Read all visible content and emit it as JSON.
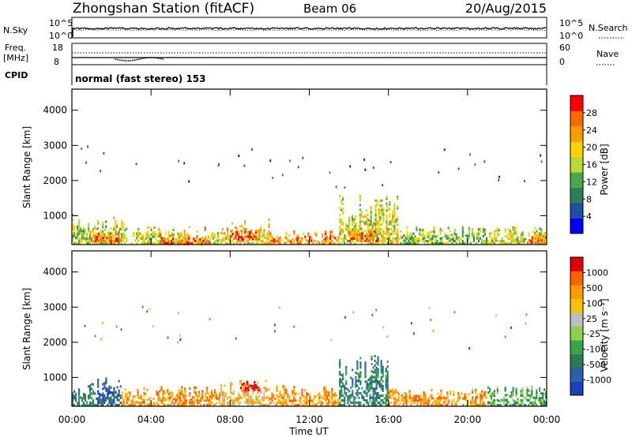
{
  "header": {
    "station": "Zhongshan Station (fitACF)",
    "beam": "Beam 06",
    "date": "20/Aug/2015"
  },
  "aux": {
    "nsky_label": "N.Sky",
    "nsky_ticks": [
      "10^5",
      "10^0"
    ],
    "nsearch_label": "N.Search",
    "freq_label": "Freq.",
    "freq_unit": "[MHz]",
    "freq_ticks": [
      "18",
      "8"
    ],
    "nave_label": "Nave",
    "nave_ticks": [
      "60",
      "0"
    ],
    "cpid_label": "CPID",
    "cpid_text": "normal (fast stereo) 153"
  },
  "time_axis": {
    "ticks": [
      "00:00",
      "04:00",
      "08:00",
      "12:00",
      "16:00",
      "20:00",
      "00:00"
    ],
    "label": "Time UT"
  },
  "colors": {
    "power_scale": [
      "#0000ff",
      "#1f4fa3",
      "#2e7d5b",
      "#49a84a",
      "#b8d832",
      "#ffd200",
      "#ff9a00",
      "#ff6a00",
      "#ff0000"
    ],
    "velocity_scale": [
      "#1a3fbf",
      "#2960a8",
      "#2e7a52",
      "#3aa64a",
      "#90d050",
      "#bdbdbd",
      "#ffc000",
      "#ff9a00",
      "#ff6000",
      "#e00000"
    ]
  },
  "chart_data": [
    {
      "type": "heatmap",
      "panel": "power",
      "ylabel": "Slant Range [km]",
      "ylim": [
        180,
        4600
      ],
      "yticks": [
        1000,
        2000,
        3000,
        4000
      ],
      "colorbar_label": "Power [dB]",
      "colorbar_ticks": [
        "28",
        "24",
        "20",
        "16",
        "12",
        "8",
        "4"
      ],
      "colorbar_range": [
        0,
        32
      ],
      "x_range_hours": [
        0,
        24
      ],
      "regions": [
        {
          "t0": 0.0,
          "t1": 2.8,
          "r0": 180,
          "r1": 1200,
          "value": 16
        },
        {
          "t0": 1.0,
          "t1": 2.5,
          "r0": 180,
          "r1": 700,
          "value": 26
        },
        {
          "t0": 3.0,
          "t1": 7.5,
          "r0": 180,
          "r1": 800,
          "value": 18
        },
        {
          "t0": 4.5,
          "t1": 7.0,
          "r0": 180,
          "r1": 450,
          "value": 28
        },
        {
          "t0": 7.5,
          "t1": 10.0,
          "r0": 180,
          "r1": 1100,
          "value": 20
        },
        {
          "t0": 8.0,
          "t1": 9.5,
          "r0": 300,
          "r1": 800,
          "value": 28
        },
        {
          "t0": 10.0,
          "t1": 13.5,
          "r0": 180,
          "r1": 700,
          "value": 24
        },
        {
          "t0": 13.5,
          "t1": 16.5,
          "r0": 180,
          "r1": 1900,
          "value": 18
        },
        {
          "t0": 14.0,
          "t1": 15.5,
          "r0": 250,
          "r1": 700,
          "value": 28
        },
        {
          "t0": 16.5,
          "t1": 21.0,
          "r0": 180,
          "r1": 800,
          "value": 14
        },
        {
          "t0": 21.0,
          "t1": 24.0,
          "r0": 180,
          "r1": 900,
          "value": 18
        },
        {
          "t0": 23.0,
          "t1": 24.0,
          "r0": 200,
          "r1": 600,
          "value": 26
        }
      ]
    },
    {
      "type": "heatmap",
      "panel": "velocity",
      "ylabel": "Slant Range [km]",
      "ylim": [
        180,
        4600
      ],
      "yticks": [
        1000,
        2000,
        3000,
        4000
      ],
      "colorbar_label": "Velocity [m s⁻¹]",
      "colorbar_ticks": [
        "1000",
        "500",
        "100",
        "25",
        "-25",
        "-100",
        "-500",
        "-1000"
      ],
      "x_range_hours": [
        0,
        24
      ],
      "regions": [
        {
          "t0": 0.0,
          "t1": 1.2,
          "r0": 180,
          "r1": 1000,
          "value": 2
        },
        {
          "t0": 1.2,
          "t1": 2.5,
          "r0": 180,
          "r1": 1300,
          "value": 1
        },
        {
          "t0": 2.5,
          "t1": 7.5,
          "r0": 180,
          "r1": 900,
          "value": 7
        },
        {
          "t0": 7.5,
          "t1": 10.0,
          "r0": 180,
          "r1": 1100,
          "value": 6
        },
        {
          "t0": 8.5,
          "t1": 9.5,
          "r0": 600,
          "r1": 1000,
          "value": 9
        },
        {
          "t0": 10.0,
          "t1": 13.5,
          "r0": 180,
          "r1": 900,
          "value": 7
        },
        {
          "t0": 13.5,
          "t1": 16.0,
          "r0": 180,
          "r1": 1900,
          "value": 2
        },
        {
          "t0": 16.0,
          "t1": 21.0,
          "r0": 180,
          "r1": 800,
          "value": 7
        },
        {
          "t0": 21.0,
          "t1": 24.0,
          "r0": 180,
          "r1": 900,
          "value": 3
        }
      ]
    }
  ]
}
